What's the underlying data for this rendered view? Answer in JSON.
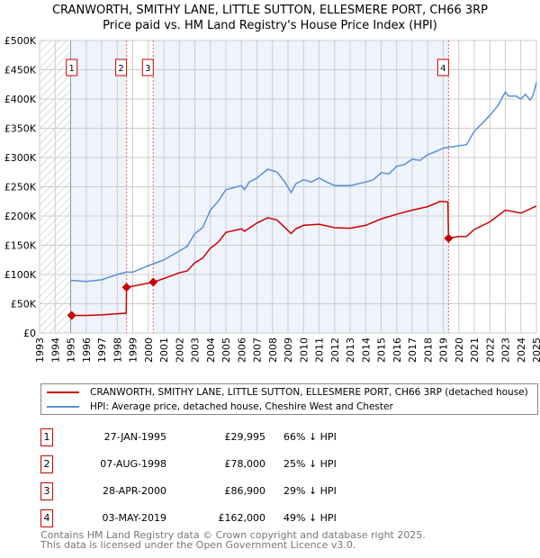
{
  "title": "CRANWORTH, SMITHY LANE, LITTLE SUTTON, ELLESMERE PORT, CH66 3RP",
  "subtitle": "Price paid vs. HM Land Registry's House Price Index (HPI)",
  "chart_data": {
    "type": "line",
    "title": "CRANWORTH, SMITHY LANE, LITTLE SUTTON, ELLESMERE PORT, CH66 3RP",
    "subtitle": "Price paid vs. HM Land Registry's House Price Index (HPI)",
    "xlim": [
      1993,
      2025
    ],
    "ylim": [
      0,
      500000
    ],
    "x_ticks": [
      "1993",
      "1994",
      "1995",
      "1996",
      "1997",
      "1998",
      "1999",
      "2000",
      "2001",
      "2002",
      "2003",
      "2004",
      "2005",
      "2006",
      "2007",
      "2008",
      "2009",
      "2010",
      "2011",
      "2012",
      "2013",
      "2014",
      "2015",
      "2016",
      "2017",
      "2018",
      "2019",
      "2020",
      "2021",
      "2022",
      "2023",
      "2024",
      "2025"
    ],
    "y_ticks": [
      "£0",
      "£50K",
      "£100K",
      "£150K",
      "£200K",
      "£250K",
      "£300K",
      "£350K",
      "£400K",
      "£450K",
      "£500K"
    ],
    "grid": true,
    "colors": {
      "property": "#cc0000",
      "hpi": "#5b8fd6",
      "shade": "#eef3fc"
    },
    "series": [
      {
        "name": "CRANWORTH, SMITHY LANE, LITTLE SUTTON, ELLESMERE PORT, CH66 3RP (detached house)",
        "x": [
          1995.07,
          1996,
          1997,
          1998.58,
          1998.6,
          1999,
          2000.32,
          2001,
          2002,
          2002.5,
          2003,
          2003.5,
          2004,
          2004.5,
          2005,
          2006,
          2006.2,
          2007,
          2007.7,
          2008.3,
          2009.2,
          2009.5,
          2010,
          2011,
          2012,
          2013,
          2014,
          2015,
          2016,
          2017,
          2018,
          2018.8,
          2019.3,
          2019.34,
          2020,
          2020.5,
          2021,
          2022,
          2023,
          2024,
          2025
        ],
        "y": [
          29995,
          30000,
          31000,
          34000,
          78000,
          80000,
          86900,
          93000,
          103000,
          106000,
          120000,
          128000,
          145000,
          155000,
          172000,
          178000,
          174000,
          188000,
          197000,
          193000,
          170000,
          178000,
          184000,
          186000,
          180000,
          179000,
          184000,
          195000,
          203000,
          210000,
          216000,
          225000,
          224000,
          162000,
          165000,
          165000,
          177000,
          190000,
          210000,
          205000,
          217000
        ]
      },
      {
        "name": "HPI: Average price, detached house, Cheshire West and Chester",
        "x": [
          1995,
          1996,
          1997,
          1998,
          1998.6,
          1999,
          2000,
          2001,
          2002,
          2002.5,
          2003,
          2003.5,
          2004,
          2004.5,
          2005,
          2006,
          2006.2,
          2006.5,
          2007,
          2007.7,
          2008.3,
          2008.8,
          2009.2,
          2009.5,
          2010,
          2010.5,
          2011,
          2011.5,
          2012,
          2013,
          2014,
          2014.5,
          2015,
          2015.5,
          2016,
          2016.5,
          2017,
          2017.5,
          2018,
          2018.5,
          2019,
          2019.5,
          2020,
          2020.5,
          2021,
          2021.5,
          2022,
          2022.5,
          2023,
          2023.2,
          2023.7,
          2024,
          2024.3,
          2024.6,
          2024.8,
          2025
        ],
        "y": [
          90000,
          88000,
          91000,
          100000,
          104000,
          104000,
          115000,
          125000,
          140000,
          148000,
          170000,
          180000,
          210000,
          225000,
          245000,
          252000,
          245000,
          258000,
          265000,
          280000,
          275000,
          258000,
          240000,
          255000,
          262000,
          258000,
          265000,
          258000,
          252000,
          252000,
          258000,
          262000,
          274000,
          272000,
          285000,
          288000,
          297000,
          295000,
          305000,
          310000,
          316000,
          318000,
          320000,
          322000,
          345000,
          358000,
          372000,
          388000,
          412000,
          405000,
          405000,
          400000,
          408000,
          398000,
          408000,
          428000
        ]
      }
    ],
    "transactions": [
      {
        "num": "1",
        "date": "27-JAN-1995",
        "price": "£29,995",
        "hpi": "66% ↓ HPI",
        "x": 1995.07,
        "y": 29995
      },
      {
        "num": "2",
        "date": "07-AUG-1998",
        "price": "£78,000",
        "hpi": "25% ↓ HPI",
        "x": 1998.6,
        "y": 78000
      },
      {
        "num": "3",
        "date": "28-APR-2000",
        "price": "£86,900",
        "hpi": "29% ↓ HPI",
        "x": 2000.32,
        "y": 86900
      },
      {
        "num": "4",
        "date": "03-MAY-2019",
        "price": "£162,000",
        "hpi": "49% ↓ HPI",
        "x": 2019.34,
        "y": 162000
      }
    ]
  },
  "legend": {
    "property": "CRANWORTH, SMITHY LANE, LITTLE SUTTON, ELLESMERE PORT, CH66 3RP (detached house)",
    "hpi": "HPI: Average price, detached house, Cheshire West and Chester"
  },
  "footer": {
    "line1": "Contains HM Land Registry data © Crown copyright and database right 2025.",
    "line2": "This data is licensed under the Open Government Licence v3.0."
  }
}
